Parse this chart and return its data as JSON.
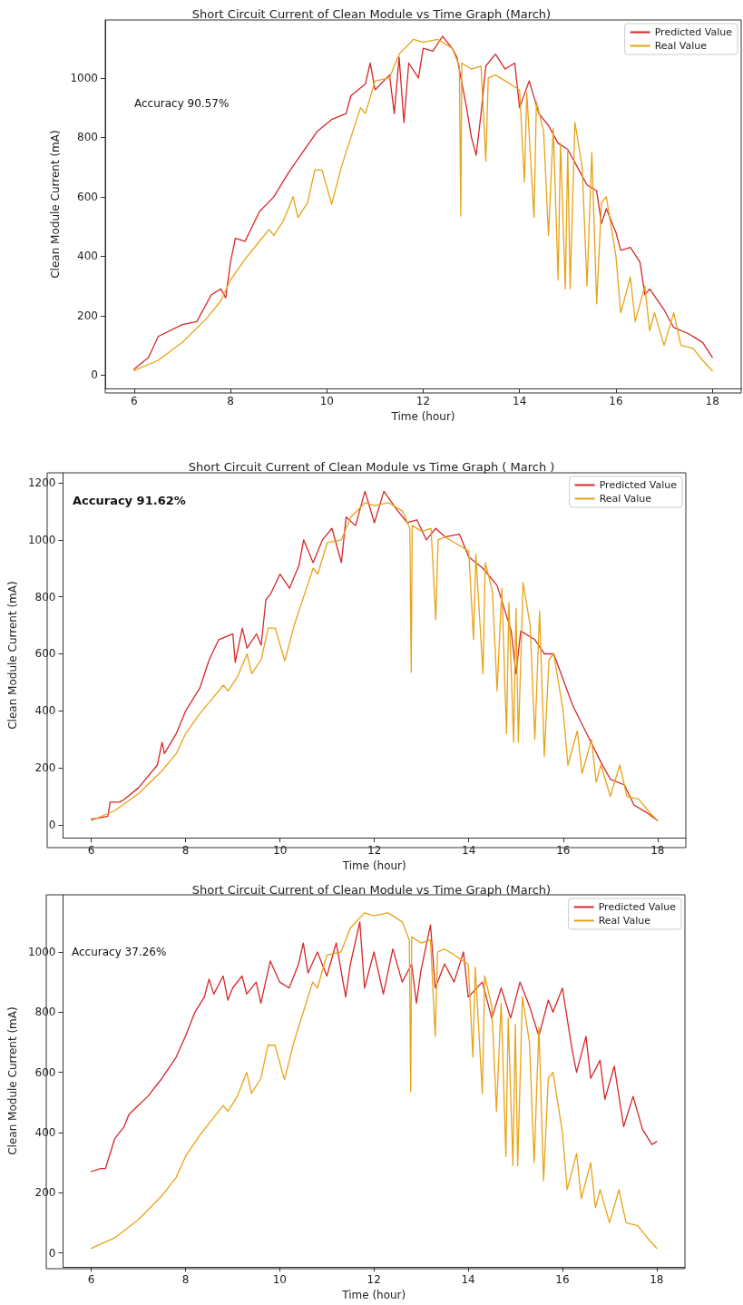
{
  "chart_data": [
    {
      "type": "line",
      "title": "Short Circuit Current of Clean Module vs Time Graph (March)",
      "xlabel": "Time (hour)",
      "ylabel": "Clean Module Current (mA)",
      "annotations": [
        "Accuracy 90.57%"
      ],
      "xlim": [
        5.4,
        18.6
      ],
      "ylim": [
        -45,
        1195
      ],
      "xticks": [
        6,
        8,
        10,
        12,
        14,
        16,
        18
      ],
      "yticks": [
        0,
        200,
        400,
        600,
        800,
        1000
      ],
      "grid": false,
      "legend": "top right",
      "marker": "none",
      "line_style": "solid",
      "series": [
        {
          "name": "Predicted Value",
          "color": "#d62728",
          "x": [
            6.0,
            6.3,
            6.5,
            7.0,
            7.3,
            7.6,
            7.8,
            7.9,
            8.0,
            8.1,
            8.3,
            8.6,
            8.9,
            9.2,
            9.5,
            9.8,
            10.1,
            10.4,
            10.5,
            10.8,
            10.9,
            11.0,
            11.3,
            11.4,
            11.5,
            11.6,
            11.7,
            11.9,
            12.0,
            12.2,
            12.4,
            12.6,
            12.7,
            12.9,
            13.0,
            13.1,
            13.2,
            13.3,
            13.5,
            13.7,
            13.9,
            14.0,
            14.2,
            14.4,
            14.6,
            14.8,
            15.0,
            15.2,
            15.4,
            15.6,
            15.7,
            15.8,
            16.0,
            16.1,
            16.3,
            16.5,
            16.6,
            16.7,
            17.0,
            17.2,
            17.5,
            17.8,
            18.0
          ],
          "values": [
            20,
            60,
            130,
            170,
            180,
            270,
            290,
            260,
            380,
            460,
            450,
            550,
            600,
            680,
            750,
            820,
            860,
            880,
            940,
            980,
            1050,
            960,
            1010,
            880,
            1070,
            850,
            1050,
            1000,
            1100,
            1090,
            1140,
            1100,
            1070,
            900,
            800,
            740,
            880,
            1040,
            1080,
            1030,
            1050,
            900,
            990,
            880,
            840,
            780,
            760,
            700,
            640,
            620,
            510,
            560,
            480,
            420,
            430,
            380,
            270,
            290,
            220,
            160,
            140,
            110,
            60
          ]
        },
        {
          "name": "Real Value",
          "color": "#e8a317",
          "x": [
            6.0,
            6.5,
            7.0,
            7.5,
            7.8,
            8.0,
            8.3,
            8.6,
            8.8,
            8.9,
            9.1,
            9.3,
            9.4,
            9.6,
            9.75,
            9.9,
            10.1,
            10.3,
            10.5,
            10.7,
            10.8,
            11.0,
            11.3,
            11.5,
            11.8,
            12.0,
            12.3,
            12.6,
            12.75,
            12.78,
            12.8,
            13.0,
            13.2,
            13.3,
            13.35,
            13.5,
            13.7,
            14.0,
            14.1,
            14.15,
            14.3,
            14.35,
            14.5,
            14.6,
            14.7,
            14.8,
            14.85,
            14.95,
            15.0,
            15.05,
            15.15,
            15.3,
            15.4,
            15.5,
            15.6,
            15.7,
            15.8,
            16.0,
            16.1,
            16.3,
            16.4,
            16.6,
            16.7,
            16.8,
            17.0,
            17.2,
            17.35,
            17.6,
            17.8,
            18.0
          ],
          "values": [
            15,
            50,
            110,
            190,
            250,
            320,
            390,
            450,
            490,
            470,
            520,
            600,
            530,
            580,
            690,
            690,
            575,
            700,
            800,
            900,
            880,
            990,
            1000,
            1080,
            1130,
            1120,
            1130,
            1100,
            1040,
            535,
            1050,
            1030,
            1040,
            720,
            1000,
            1010,
            990,
            960,
            650,
            950,
            530,
            920,
            820,
            470,
            830,
            320,
            780,
            290,
            760,
            290,
            850,
            700,
            300,
            750,
            240,
            580,
            600,
            400,
            210,
            330,
            180,
            300,
            150,
            210,
            100,
            210,
            100,
            90,
            50,
            15
          ]
        }
      ]
    },
    {
      "type": "line",
      "title": "Short Circuit Current of Clean Module vs Time Graph ( March )",
      "xlabel": "Time (hour)",
      "ylabel": "Clean Module Current (mA)",
      "annotations": [
        "Accuracy 91.62%"
      ],
      "xlim": [
        5.4,
        18.6
      ],
      "ylim": [
        -45,
        1235
      ],
      "xticks": [
        6,
        8,
        10,
        12,
        14,
        16,
        18
      ],
      "yticks": [
        0,
        200,
        400,
        600,
        800,
        1000,
        1200
      ],
      "grid": false,
      "legend": "top right",
      "marker": "none",
      "line_style": "solid",
      "series": [
        {
          "name": "Predicted Value",
          "color": "#d62728",
          "x": [
            6.0,
            6.35,
            6.4,
            6.6,
            6.7,
            7.0,
            7.4,
            7.5,
            7.55,
            7.8,
            8.0,
            8.3,
            8.5,
            8.7,
            9.0,
            9.05,
            9.2,
            9.3,
            9.5,
            9.6,
            9.7,
            9.8,
            10.0,
            10.2,
            10.4,
            10.5,
            10.7,
            10.9,
            11.1,
            11.3,
            11.4,
            11.6,
            11.8,
            12.0,
            12.2,
            12.5,
            12.7,
            12.9,
            13.1,
            13.3,
            13.5,
            13.8,
            14.0,
            14.3,
            14.6,
            14.9,
            15.0,
            15.1,
            15.4,
            15.6,
            15.8,
            16.0,
            16.2,
            16.5,
            16.8,
            17.0,
            17.3,
            17.5,
            17.8,
            18.0
          ],
          "values": [
            20,
            30,
            80,
            80,
            90,
            130,
            210,
            290,
            250,
            320,
            400,
            480,
            580,
            650,
            670,
            570,
            690,
            620,
            670,
            630,
            790,
            810,
            880,
            830,
            910,
            1000,
            920,
            1000,
            1040,
            920,
            1080,
            1050,
            1170,
            1060,
            1170,
            1100,
            1060,
            1070,
            1000,
            1040,
            1010,
            1020,
            940,
            900,
            840,
            680,
            530,
            680,
            650,
            600,
            600,
            510,
            420,
            320,
            220,
            160,
            140,
            70,
            40,
            15
          ]
        },
        {
          "name": "Real Value",
          "color": "#e8a317",
          "x": [
            6.0,
            6.5,
            7.0,
            7.5,
            7.8,
            8.0,
            8.3,
            8.6,
            8.8,
            8.9,
            9.1,
            9.3,
            9.4,
            9.6,
            9.75,
            9.9,
            10.1,
            10.3,
            10.5,
            10.7,
            10.8,
            11.0,
            11.3,
            11.5,
            11.8,
            12.0,
            12.3,
            12.6,
            12.75,
            12.78,
            12.8,
            13.0,
            13.2,
            13.3,
            13.35,
            13.5,
            13.7,
            14.0,
            14.1,
            14.15,
            14.3,
            14.35,
            14.5,
            14.6,
            14.7,
            14.8,
            14.85,
            14.95,
            15.0,
            15.05,
            15.15,
            15.3,
            15.4,
            15.5,
            15.6,
            15.7,
            15.8,
            16.0,
            16.1,
            16.3,
            16.4,
            16.6,
            16.7,
            16.8,
            17.0,
            17.2,
            17.35,
            17.6,
            17.8,
            18.0
          ],
          "values": [
            15,
            50,
            110,
            190,
            250,
            320,
            390,
            450,
            490,
            470,
            520,
            600,
            530,
            580,
            690,
            690,
            575,
            700,
            800,
            900,
            880,
            990,
            1000,
            1080,
            1130,
            1120,
            1130,
            1100,
            1040,
            535,
            1050,
            1030,
            1040,
            720,
            1000,
            1010,
            990,
            960,
            650,
            950,
            530,
            920,
            820,
            470,
            830,
            320,
            780,
            290,
            760,
            290,
            850,
            700,
            300,
            750,
            240,
            580,
            600,
            400,
            210,
            330,
            180,
            300,
            150,
            210,
            100,
            210,
            100,
            90,
            50,
            15
          ]
        }
      ]
    },
    {
      "type": "line",
      "title": "Short Circuit Current of Clean Module vs Time Graph (March)",
      "xlabel": "Time (hour)",
      "ylabel": "Clean Module Current (mA)",
      "annotations": [
        "Accuracy 37.26%"
      ],
      "xlim": [
        5.4,
        18.6
      ],
      "ylim": [
        -47,
        1190
      ],
      "xticks": [
        6,
        8,
        10,
        12,
        14,
        16,
        18
      ],
      "yticks": [
        0,
        200,
        400,
        600,
        800,
        1000
      ],
      "grid": false,
      "legend": "top right",
      "marker": "none",
      "line_style": "solid",
      "series": [
        {
          "name": "Predicted Value",
          "color": "#d62728",
          "x": [
            6.0,
            6.2,
            6.3,
            6.5,
            6.7,
            6.8,
            7.0,
            7.2,
            7.5,
            7.8,
            8.0,
            8.2,
            8.4,
            8.5,
            8.6,
            8.8,
            8.9,
            9.0,
            9.2,
            9.3,
            9.5,
            9.6,
            9.8,
            10.0,
            10.2,
            10.4,
            10.5,
            10.6,
            10.8,
            11.0,
            11.2,
            11.4,
            11.5,
            11.7,
            11.8,
            12.0,
            12.2,
            12.4,
            12.6,
            12.8,
            12.9,
            13.0,
            13.2,
            13.3,
            13.5,
            13.7,
            13.9,
            14.0,
            14.3,
            14.5,
            14.7,
            14.9,
            15.1,
            15.3,
            15.5,
            15.7,
            15.8,
            16.0,
            16.2,
            16.3,
            16.5,
            16.6,
            16.8,
            16.9,
            17.1,
            17.3,
            17.5,
            17.7,
            17.9,
            18.0
          ],
          "values": [
            270,
            280,
            280,
            380,
            420,
            460,
            490,
            520,
            580,
            650,
            720,
            800,
            850,
            910,
            860,
            920,
            840,
            880,
            920,
            860,
            900,
            830,
            970,
            900,
            880,
            960,
            1030,
            930,
            1000,
            920,
            1030,
            850,
            960,
            1100,
            880,
            1000,
            860,
            1010,
            900,
            960,
            830,
            940,
            1090,
            880,
            960,
            900,
            1000,
            850,
            900,
            780,
            880,
            780,
            900,
            820,
            720,
            840,
            800,
            880,
            680,
            600,
            720,
            580,
            640,
            510,
            620,
            420,
            520,
            410,
            360,
            370
          ]
        },
        {
          "name": "Real Value",
          "color": "#e8a317",
          "x": [
            6.0,
            6.5,
            7.0,
            7.5,
            7.8,
            8.0,
            8.3,
            8.6,
            8.8,
            8.9,
            9.1,
            9.3,
            9.4,
            9.6,
            9.75,
            9.9,
            10.1,
            10.3,
            10.5,
            10.7,
            10.8,
            11.0,
            11.3,
            11.5,
            11.8,
            12.0,
            12.3,
            12.6,
            12.75,
            12.78,
            12.8,
            13.0,
            13.2,
            13.3,
            13.35,
            13.5,
            13.7,
            14.0,
            14.1,
            14.15,
            14.3,
            14.35,
            14.5,
            14.6,
            14.7,
            14.8,
            14.85,
            14.95,
            15.0,
            15.05,
            15.15,
            15.3,
            15.4,
            15.5,
            15.6,
            15.7,
            15.8,
            16.0,
            16.1,
            16.3,
            16.4,
            16.6,
            16.7,
            16.8,
            17.0,
            17.2,
            17.35,
            17.6,
            17.8,
            18.0
          ],
          "values": [
            15,
            50,
            110,
            190,
            250,
            320,
            390,
            450,
            490,
            470,
            520,
            600,
            530,
            580,
            690,
            690,
            575,
            700,
            800,
            900,
            880,
            990,
            1000,
            1080,
            1130,
            1120,
            1130,
            1100,
            1040,
            535,
            1050,
            1030,
            1040,
            720,
            1000,
            1010,
            990,
            960,
            650,
            950,
            530,
            920,
            820,
            470,
            830,
            320,
            780,
            290,
            760,
            290,
            850,
            700,
            300,
            750,
            240,
            580,
            600,
            400,
            210,
            330,
            180,
            300,
            150,
            210,
            100,
            210,
            100,
            90,
            50,
            15
          ]
        }
      ]
    }
  ]
}
